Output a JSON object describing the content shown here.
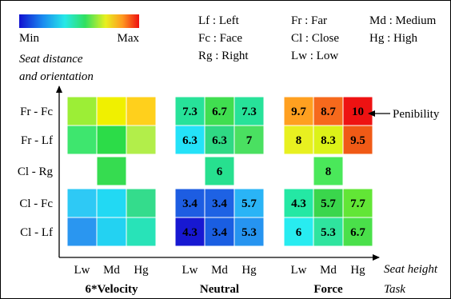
{
  "legend": {
    "min_label": "Min",
    "max_label": "Max",
    "abbreviations": [
      {
        "key": "Lf",
        "meaning": "Left"
      },
      {
        "key": "Fc",
        "meaning": "Face"
      },
      {
        "key": "Rg",
        "meaning": "Right"
      },
      {
        "key": "Fr",
        "meaning": "Far"
      },
      {
        "key": "Cl",
        "meaning": "Close"
      },
      {
        "key": "Lw",
        "meaning": "Low"
      },
      {
        "key": "Md",
        "meaning": "Medium"
      },
      {
        "key": "Hg",
        "meaning": "High"
      }
    ]
  },
  "chart_data": {
    "type": "heatmap",
    "ylabel": "Seat distance and orientation",
    "xlabel": "Seat height",
    "task_label": "Task",
    "annotation": "Penibility",
    "rows": [
      "Fr - Fc",
      "Fr - Lf",
      "Cl - Rg",
      "Cl - Fc",
      "Cl - Lf"
    ],
    "columns": [
      "Lw",
      "Md",
      "Hg"
    ],
    "scale": {
      "min": 3,
      "max": 10
    },
    "groups": [
      {
        "name": "6*Velocity",
        "show_values": false,
        "values": [
          [
            6.2,
            8.3,
            8.9
          ],
          [
            5.0,
            4.7,
            6.5
          ],
          [
            null,
            4.6,
            null
          ],
          [
            3.9,
            4.0,
            4.4
          ],
          [
            3.7,
            3.9,
            4.2
          ]
        ]
      },
      {
        "name": "Neutral",
        "show_values": true,
        "values": [
          [
            7.3,
            6.7,
            7.3
          ],
          [
            6.3,
            6.3,
            7
          ],
          [
            null,
            6,
            null
          ],
          [
            3.4,
            3.4,
            5.7
          ],
          [
            4.3,
            3.4,
            5.3
          ]
        ]
      },
      {
        "name": "Force",
        "show_values": true,
        "values": [
          [
            9.7,
            8.7,
            10
          ],
          [
            8,
            8.3,
            9.5
          ],
          [
            null,
            8,
            null
          ],
          [
            4.3,
            5.7,
            7.7
          ],
          [
            6,
            5.3,
            6.7
          ]
        ]
      }
    ],
    "cell_colors": {
      "6*Velocity": [
        [
          "#9cee36",
          "#f0f000",
          "#ffd01c"
        ],
        [
          "#3ee66e",
          "#2cdc48",
          "#b2ee4a"
        ],
        [
          null,
          "#36dc50",
          null
        ],
        [
          "#2ec9f5",
          "#22d9f3",
          "#34dc8c"
        ],
        [
          "#2a96f0",
          "#23d2f2",
          "#28e3b8"
        ]
      ],
      "Neutral": [
        [
          "#27e299",
          "#40de50",
          "#27e299"
        ],
        [
          "#24e2f8",
          "#2fd984",
          "#4ae061"
        ],
        [
          null,
          "#27e08f",
          null
        ],
        [
          "#1d5de2",
          "#1e62e4",
          "#2ab4f6"
        ],
        [
          "#1718d2",
          "#1a5ee2",
          "#2694f0"
        ]
      ],
      "Force": [
        [
          "#ffa020",
          "#f6691c",
          "#ee1212"
        ],
        [
          "#e8f020",
          "#dcf218",
          "#f05a16"
        ],
        [
          null,
          "#4ae85a",
          null
        ],
        [
          "#24e8a4",
          "#3ad64c",
          "#62e636"
        ],
        [
          "#28ecf0",
          "#2fe49e",
          "#4ae04a"
        ]
      ]
    }
  }
}
